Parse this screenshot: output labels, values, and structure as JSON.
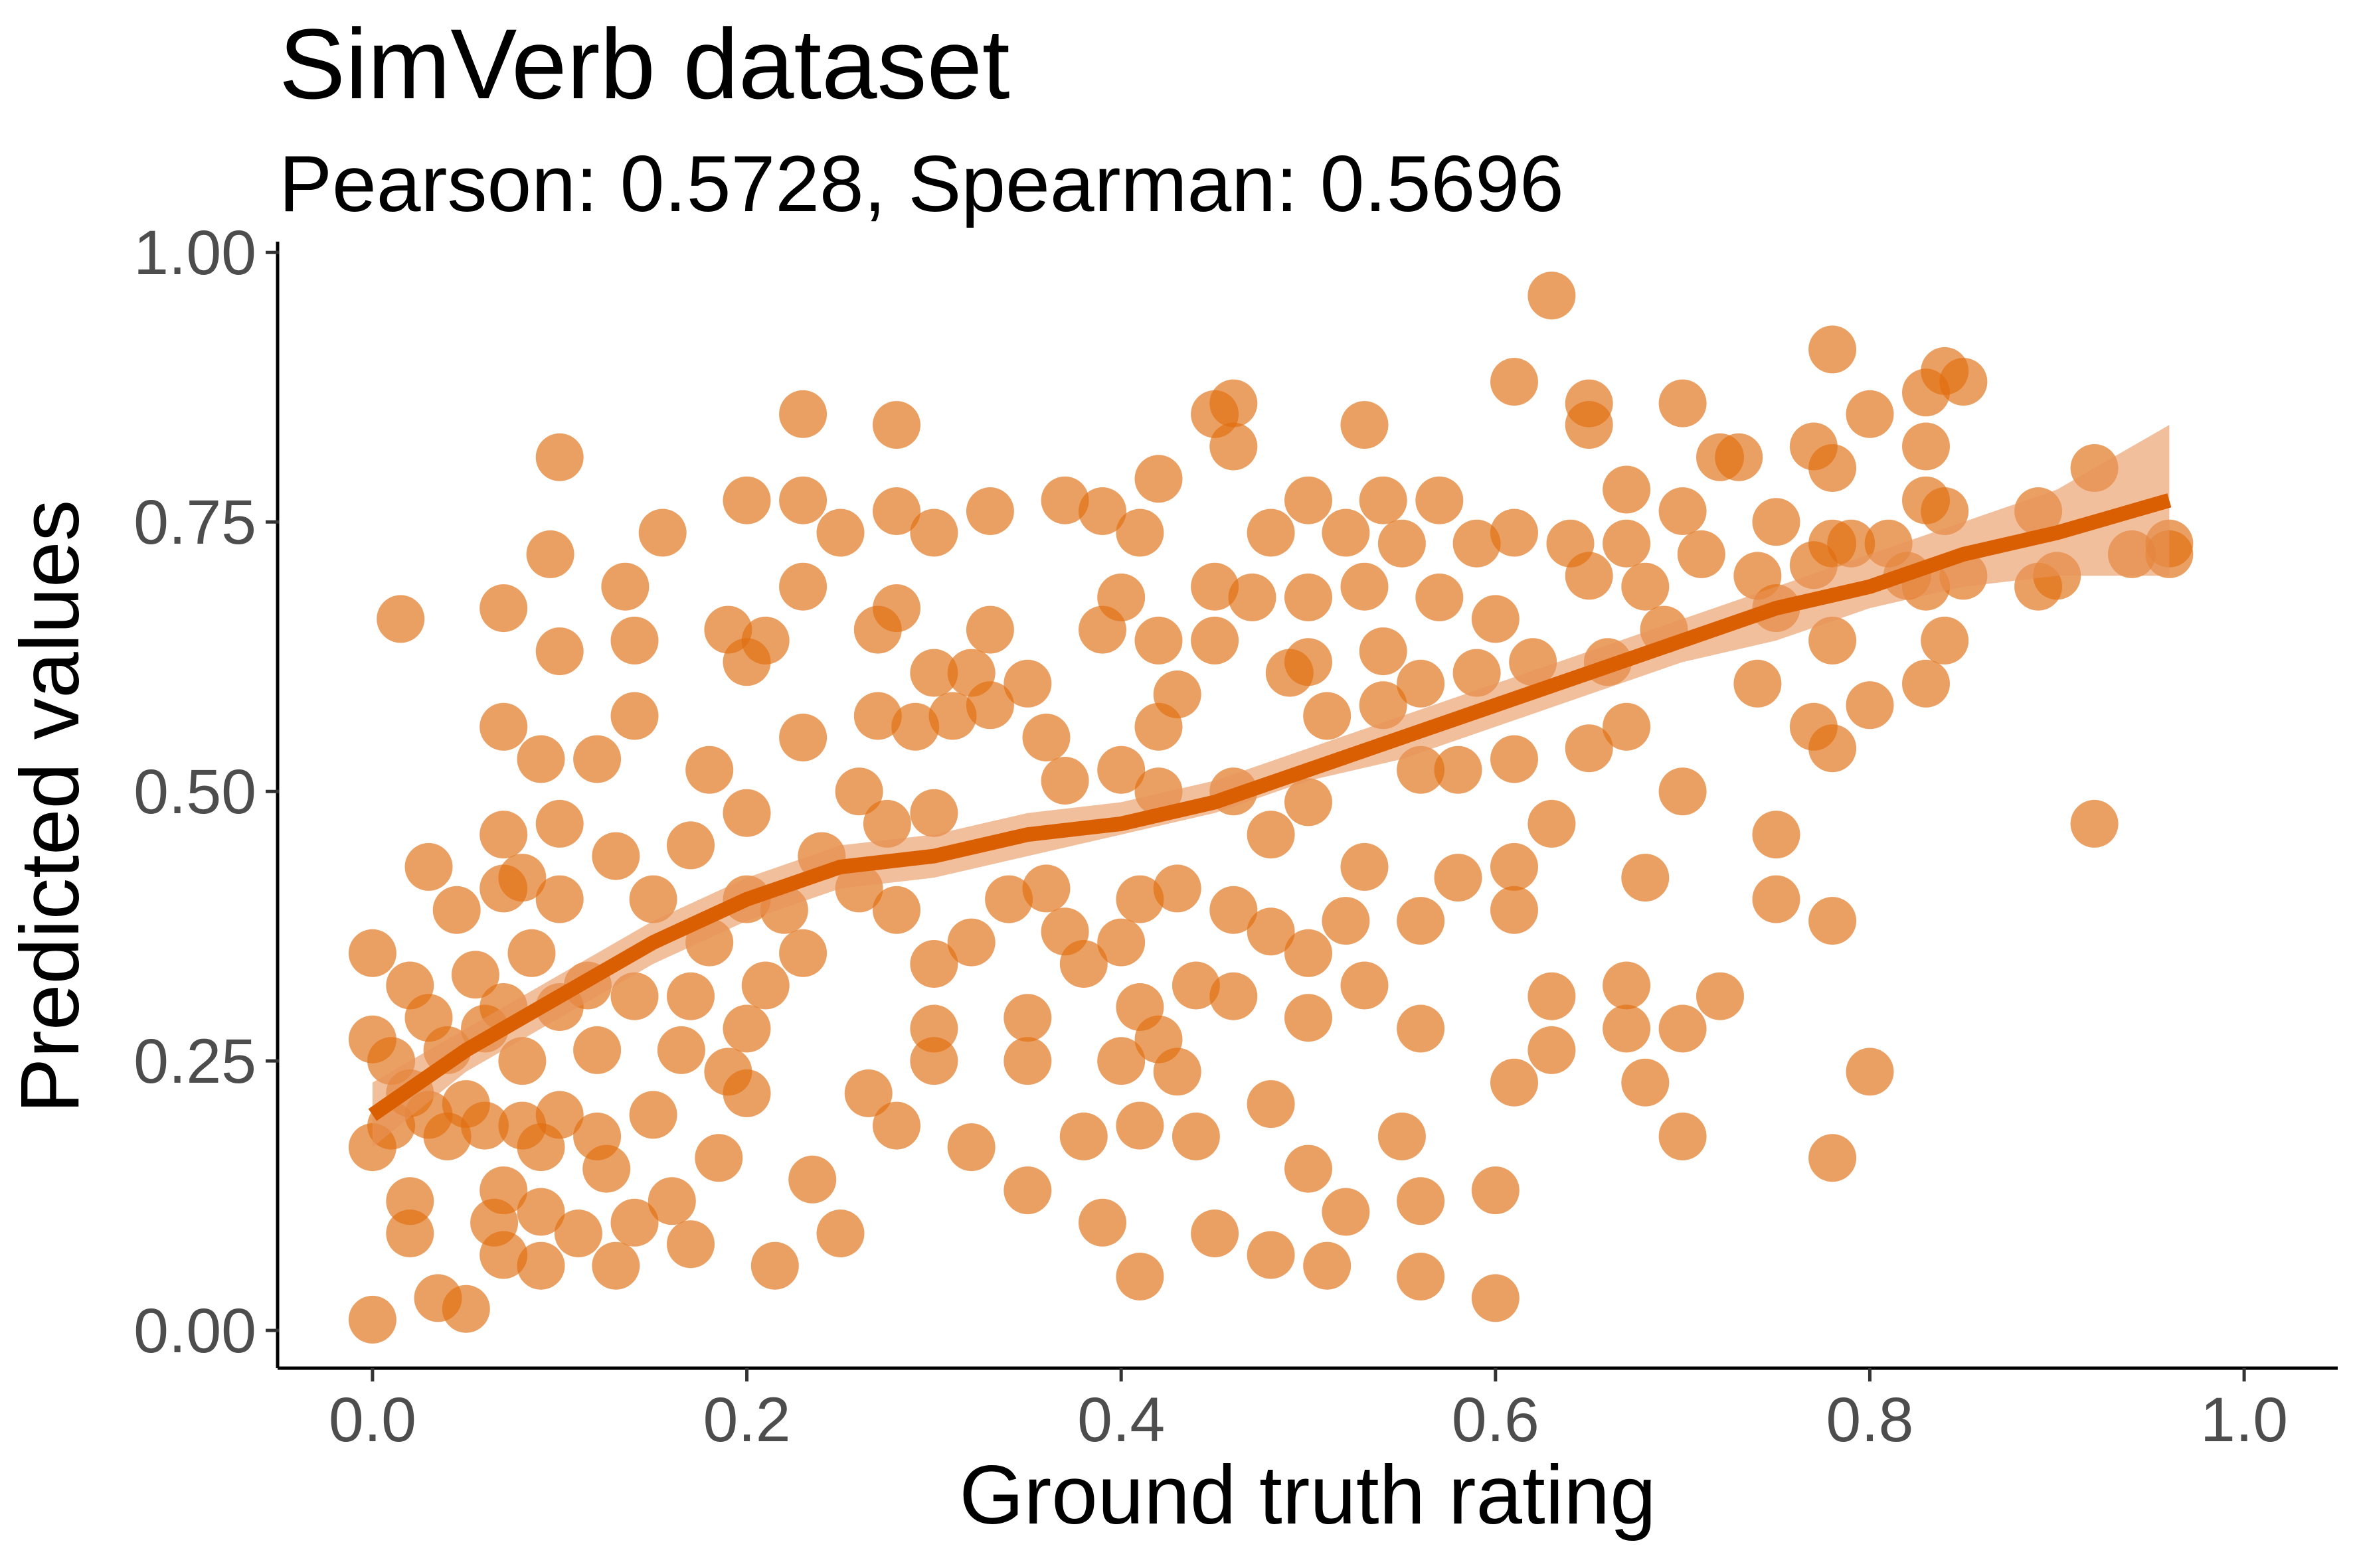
{
  "chart_data": {
    "type": "scatter",
    "title": "SimVerb dataset",
    "subtitle": "Pearson: 0.5728, Spearman: 0.5696",
    "xlabel": "Ground truth rating",
    "ylabel": "Predicted values",
    "xlim": [
      -0.05,
      1.05
    ],
    "ylim": [
      -0.035,
      1.01
    ],
    "xticks": [
      0.0,
      0.2,
      0.4,
      0.6,
      0.8,
      1.0
    ],
    "xtick_labels": [
      "0.0",
      "0.2",
      "0.4",
      "0.6",
      "0.8",
      "1.0"
    ],
    "yticks": [
      0.0,
      0.25,
      0.5,
      0.75,
      1.0
    ],
    "ytick_labels": [
      "0.00",
      "0.25",
      "0.50",
      "0.75",
      "1.00"
    ],
    "grid": false,
    "legend": "none",
    "colors": {
      "point": "#e06d10",
      "line": "#d95f02",
      "ribbon": "#e8955a"
    },
    "series": [
      {
        "points": [
          [
            0.0,
            0.35
          ],
          [
            0.0,
            0.27
          ],
          [
            0.0,
            0.17
          ],
          [
            0.0,
            0.01
          ],
          [
            0.01,
            0.25
          ],
          [
            0.01,
            0.19
          ],
          [
            0.015,
            0.66
          ],
          [
            0.02,
            0.32
          ],
          [
            0.02,
            0.12
          ],
          [
            0.02,
            0.09
          ],
          [
            0.02,
            0.22
          ],
          [
            0.03,
            0.29
          ],
          [
            0.03,
            0.2
          ],
          [
            0.03,
            0.43
          ],
          [
            0.035,
            0.03
          ],
          [
            0.04,
            0.18
          ],
          [
            0.04,
            0.26
          ],
          [
            0.045,
            0.39
          ],
          [
            0.05,
            0.02
          ],
          [
            0.05,
            0.21
          ],
          [
            0.055,
            0.33
          ],
          [
            0.06,
            0.28
          ],
          [
            0.06,
            0.19
          ],
          [
            0.065,
            0.1
          ],
          [
            0.07,
            0.67
          ],
          [
            0.07,
            0.56
          ],
          [
            0.07,
            0.46
          ],
          [
            0.07,
            0.41
          ],
          [
            0.07,
            0.3
          ],
          [
            0.07,
            0.13
          ],
          [
            0.07,
            0.07
          ],
          [
            0.08,
            0.42
          ],
          [
            0.08,
            0.25
          ],
          [
            0.08,
            0.19
          ],
          [
            0.085,
            0.35
          ],
          [
            0.09,
            0.53
          ],
          [
            0.09,
            0.17
          ],
          [
            0.09,
            0.11
          ],
          [
            0.09,
            0.06
          ],
          [
            0.095,
            0.72
          ],
          [
            0.1,
            0.47
          ],
          [
            0.1,
            0.4
          ],
          [
            0.1,
            0.3
          ],
          [
            0.1,
            0.2
          ],
          [
            0.1,
            0.81
          ],
          [
            0.1,
            0.63
          ],
          [
            0.11,
            0.09
          ],
          [
            0.115,
            0.32
          ],
          [
            0.12,
            0.26
          ],
          [
            0.12,
            0.18
          ],
          [
            0.12,
            0.53
          ],
          [
            0.125,
            0.15
          ],
          [
            0.13,
            0.44
          ],
          [
            0.13,
            0.06
          ],
          [
            0.135,
            0.69
          ],
          [
            0.14,
            0.57
          ],
          [
            0.14,
            0.64
          ],
          [
            0.14,
            0.31
          ],
          [
            0.14,
            0.1
          ],
          [
            0.15,
            0.4
          ],
          [
            0.15,
            0.2
          ],
          [
            0.155,
            0.74
          ],
          [
            0.16,
            0.12
          ],
          [
            0.165,
            0.26
          ],
          [
            0.17,
            0.45
          ],
          [
            0.17,
            0.31
          ],
          [
            0.17,
            0.08
          ],
          [
            0.18,
            0.52
          ],
          [
            0.18,
            0.36
          ],
          [
            0.185,
            0.16
          ],
          [
            0.19,
            0.65
          ],
          [
            0.19,
            0.24
          ],
          [
            0.2,
            0.62
          ],
          [
            0.2,
            0.48
          ],
          [
            0.2,
            0.4
          ],
          [
            0.2,
            0.28
          ],
          [
            0.2,
            0.22
          ],
          [
            0.2,
            0.77
          ],
          [
            0.21,
            0.64
          ],
          [
            0.21,
            0.32
          ],
          [
            0.215,
            0.06
          ],
          [
            0.22,
            0.39
          ],
          [
            0.23,
            0.85
          ],
          [
            0.23,
            0.77
          ],
          [
            0.23,
            0.69
          ],
          [
            0.23,
            0.55
          ],
          [
            0.23,
            0.35
          ],
          [
            0.235,
            0.14
          ],
          [
            0.24,
            0.44
          ],
          [
            0.25,
            0.74
          ],
          [
            0.25,
            0.09
          ],
          [
            0.26,
            0.5
          ],
          [
            0.26,
            0.41
          ],
          [
            0.265,
            0.22
          ],
          [
            0.27,
            0.65
          ],
          [
            0.27,
            0.57
          ],
          [
            0.275,
            0.47
          ],
          [
            0.28,
            0.84
          ],
          [
            0.28,
            0.76
          ],
          [
            0.28,
            0.67
          ],
          [
            0.28,
            0.39
          ],
          [
            0.28,
            0.19
          ],
          [
            0.29,
            0.56
          ],
          [
            0.3,
            0.74
          ],
          [
            0.3,
            0.61
          ],
          [
            0.3,
            0.48
          ],
          [
            0.3,
            0.34
          ],
          [
            0.3,
            0.28
          ],
          [
            0.3,
            0.25
          ],
          [
            0.31,
            0.57
          ],
          [
            0.32,
            0.61
          ],
          [
            0.32,
            0.36
          ],
          [
            0.32,
            0.17
          ],
          [
            0.33,
            0.76
          ],
          [
            0.33,
            0.65
          ],
          [
            0.33,
            0.58
          ],
          [
            0.34,
            0.4
          ],
          [
            0.35,
            0.6
          ],
          [
            0.35,
            0.29
          ],
          [
            0.35,
            0.25
          ],
          [
            0.35,
            0.13
          ],
          [
            0.36,
            0.55
          ],
          [
            0.36,
            0.41
          ],
          [
            0.37,
            0.77
          ],
          [
            0.37,
            0.51
          ],
          [
            0.37,
            0.37
          ],
          [
            0.38,
            0.34
          ],
          [
            0.38,
            0.18
          ],
          [
            0.39,
            0.76
          ],
          [
            0.39,
            0.65
          ],
          [
            0.39,
            0.1
          ],
          [
            0.4,
            0.68
          ],
          [
            0.4,
            0.52
          ],
          [
            0.4,
            0.36
          ],
          [
            0.4,
            0.25
          ],
          [
            0.41,
            0.74
          ],
          [
            0.41,
            0.4
          ],
          [
            0.41,
            0.3
          ],
          [
            0.41,
            0.19
          ],
          [
            0.41,
            0.05
          ],
          [
            0.42,
            0.79
          ],
          [
            0.42,
            0.64
          ],
          [
            0.42,
            0.56
          ],
          [
            0.42,
            0.5
          ],
          [
            0.42,
            0.27
          ],
          [
            0.43,
            0.59
          ],
          [
            0.43,
            0.41
          ],
          [
            0.43,
            0.24
          ],
          [
            0.44,
            0.32
          ],
          [
            0.44,
            0.18
          ],
          [
            0.45,
            0.85
          ],
          [
            0.45,
            0.69
          ],
          [
            0.45,
            0.64
          ],
          [
            0.45,
            0.09
          ],
          [
            0.46,
            0.86
          ],
          [
            0.46,
            0.82
          ],
          [
            0.46,
            0.5
          ],
          [
            0.46,
            0.39
          ],
          [
            0.46,
            0.31
          ],
          [
            0.47,
            0.68
          ],
          [
            0.48,
            0.74
          ],
          [
            0.48,
            0.46
          ],
          [
            0.48,
            0.37
          ],
          [
            0.48,
            0.21
          ],
          [
            0.48,
            0.07
          ],
          [
            0.49,
            0.61
          ],
          [
            0.5,
            0.77
          ],
          [
            0.5,
            0.68
          ],
          [
            0.5,
            0.62
          ],
          [
            0.5,
            0.49
          ],
          [
            0.5,
            0.35
          ],
          [
            0.5,
            0.29
          ],
          [
            0.5,
            0.15
          ],
          [
            0.51,
            0.06
          ],
          [
            0.51,
            0.57
          ],
          [
            0.52,
            0.74
          ],
          [
            0.52,
            0.38
          ],
          [
            0.52,
            0.11
          ],
          [
            0.53,
            0.84
          ],
          [
            0.53,
            0.69
          ],
          [
            0.53,
            0.43
          ],
          [
            0.53,
            0.32
          ],
          [
            0.54,
            0.63
          ],
          [
            0.54,
            0.77
          ],
          [
            0.54,
            0.58
          ],
          [
            0.55,
            0.73
          ],
          [
            0.55,
            0.18
          ],
          [
            0.56,
            0.6
          ],
          [
            0.56,
            0.52
          ],
          [
            0.56,
            0.38
          ],
          [
            0.56,
            0.28
          ],
          [
            0.56,
            0.12
          ],
          [
            0.56,
            0.05
          ],
          [
            0.57,
            0.77
          ],
          [
            0.57,
            0.68
          ],
          [
            0.58,
            0.52
          ],
          [
            0.58,
            0.42
          ],
          [
            0.59,
            0.61
          ],
          [
            0.59,
            0.73
          ],
          [
            0.6,
            0.66
          ],
          [
            0.6,
            0.13
          ],
          [
            0.6,
            0.03
          ],
          [
            0.61,
            0.88
          ],
          [
            0.61,
            0.74
          ],
          [
            0.61,
            0.53
          ],
          [
            0.61,
            0.43
          ],
          [
            0.61,
            0.39
          ],
          [
            0.61,
            0.23
          ],
          [
            0.62,
            0.62
          ],
          [
            0.63,
            0.96
          ],
          [
            0.63,
            0.47
          ],
          [
            0.63,
            0.31
          ],
          [
            0.63,
            0.26
          ],
          [
            0.64,
            0.73
          ],
          [
            0.65,
            0.86
          ],
          [
            0.65,
            0.84
          ],
          [
            0.65,
            0.7
          ],
          [
            0.65,
            0.54
          ],
          [
            0.66,
            0.62
          ],
          [
            0.67,
            0.78
          ],
          [
            0.67,
            0.73
          ],
          [
            0.67,
            0.56
          ],
          [
            0.67,
            0.32
          ],
          [
            0.67,
            0.28
          ],
          [
            0.68,
            0.69
          ],
          [
            0.68,
            0.42
          ],
          [
            0.68,
            0.23
          ],
          [
            0.69,
            0.65
          ],
          [
            0.7,
            0.86
          ],
          [
            0.7,
            0.76
          ],
          [
            0.7,
            0.5
          ],
          [
            0.7,
            0.28
          ],
          [
            0.7,
            0.18
          ],
          [
            0.71,
            0.72
          ],
          [
            0.72,
            0.81
          ],
          [
            0.72,
            0.31
          ],
          [
            0.73,
            0.81
          ],
          [
            0.74,
            0.7
          ],
          [
            0.74,
            0.6
          ],
          [
            0.75,
            0.75
          ],
          [
            0.75,
            0.67
          ],
          [
            0.75,
            0.46
          ],
          [
            0.75,
            0.4
          ],
          [
            0.77,
            0.82
          ],
          [
            0.77,
            0.71
          ],
          [
            0.77,
            0.56
          ],
          [
            0.78,
            0.91
          ],
          [
            0.78,
            0.8
          ],
          [
            0.78,
            0.73
          ],
          [
            0.78,
            0.64
          ],
          [
            0.78,
            0.54
          ],
          [
            0.78,
            0.38
          ],
          [
            0.78,
            0.16
          ],
          [
            0.79,
            0.73
          ],
          [
            0.8,
            0.85
          ],
          [
            0.8,
            0.58
          ],
          [
            0.8,
            0.24
          ],
          [
            0.81,
            0.73
          ],
          [
            0.82,
            0.7
          ],
          [
            0.83,
            0.87
          ],
          [
            0.83,
            0.82
          ],
          [
            0.83,
            0.77
          ],
          [
            0.83,
            0.69
          ],
          [
            0.83,
            0.6
          ],
          [
            0.84,
            0.89
          ],
          [
            0.84,
            0.76
          ],
          [
            0.84,
            0.64
          ],
          [
            0.85,
            0.88
          ],
          [
            0.85,
            0.7
          ],
          [
            0.89,
            0.76
          ],
          [
            0.89,
            0.69
          ],
          [
            0.9,
            0.7
          ],
          [
            0.92,
            0.8
          ],
          [
            0.92,
            0.47
          ],
          [
            0.94,
            0.72
          ],
          [
            0.96,
            0.73
          ],
          [
            0.96,
            0.72
          ]
        ]
      }
    ],
    "smooth": {
      "x": [
        0.0,
        0.05,
        0.1,
        0.15,
        0.2,
        0.25,
        0.3,
        0.35,
        0.4,
        0.45,
        0.5,
        0.55,
        0.6,
        0.65,
        0.7,
        0.75,
        0.8,
        0.85,
        0.9,
        0.96
      ],
      "y": [
        0.2,
        0.26,
        0.31,
        0.36,
        0.4,
        0.43,
        0.44,
        0.46,
        0.47,
        0.49,
        0.52,
        0.55,
        0.58,
        0.61,
        0.64,
        0.67,
        0.69,
        0.72,
        0.74,
        0.77
      ],
      "lower": [
        0.17,
        0.24,
        0.29,
        0.34,
        0.38,
        0.41,
        0.42,
        0.44,
        0.46,
        0.48,
        0.51,
        0.53,
        0.56,
        0.59,
        0.62,
        0.64,
        0.67,
        0.69,
        0.7,
        0.7
      ],
      "upper": [
        0.23,
        0.28,
        0.33,
        0.38,
        0.42,
        0.45,
        0.46,
        0.48,
        0.49,
        0.51,
        0.54,
        0.57,
        0.6,
        0.63,
        0.66,
        0.69,
        0.72,
        0.75,
        0.78,
        0.84
      ]
    }
  }
}
